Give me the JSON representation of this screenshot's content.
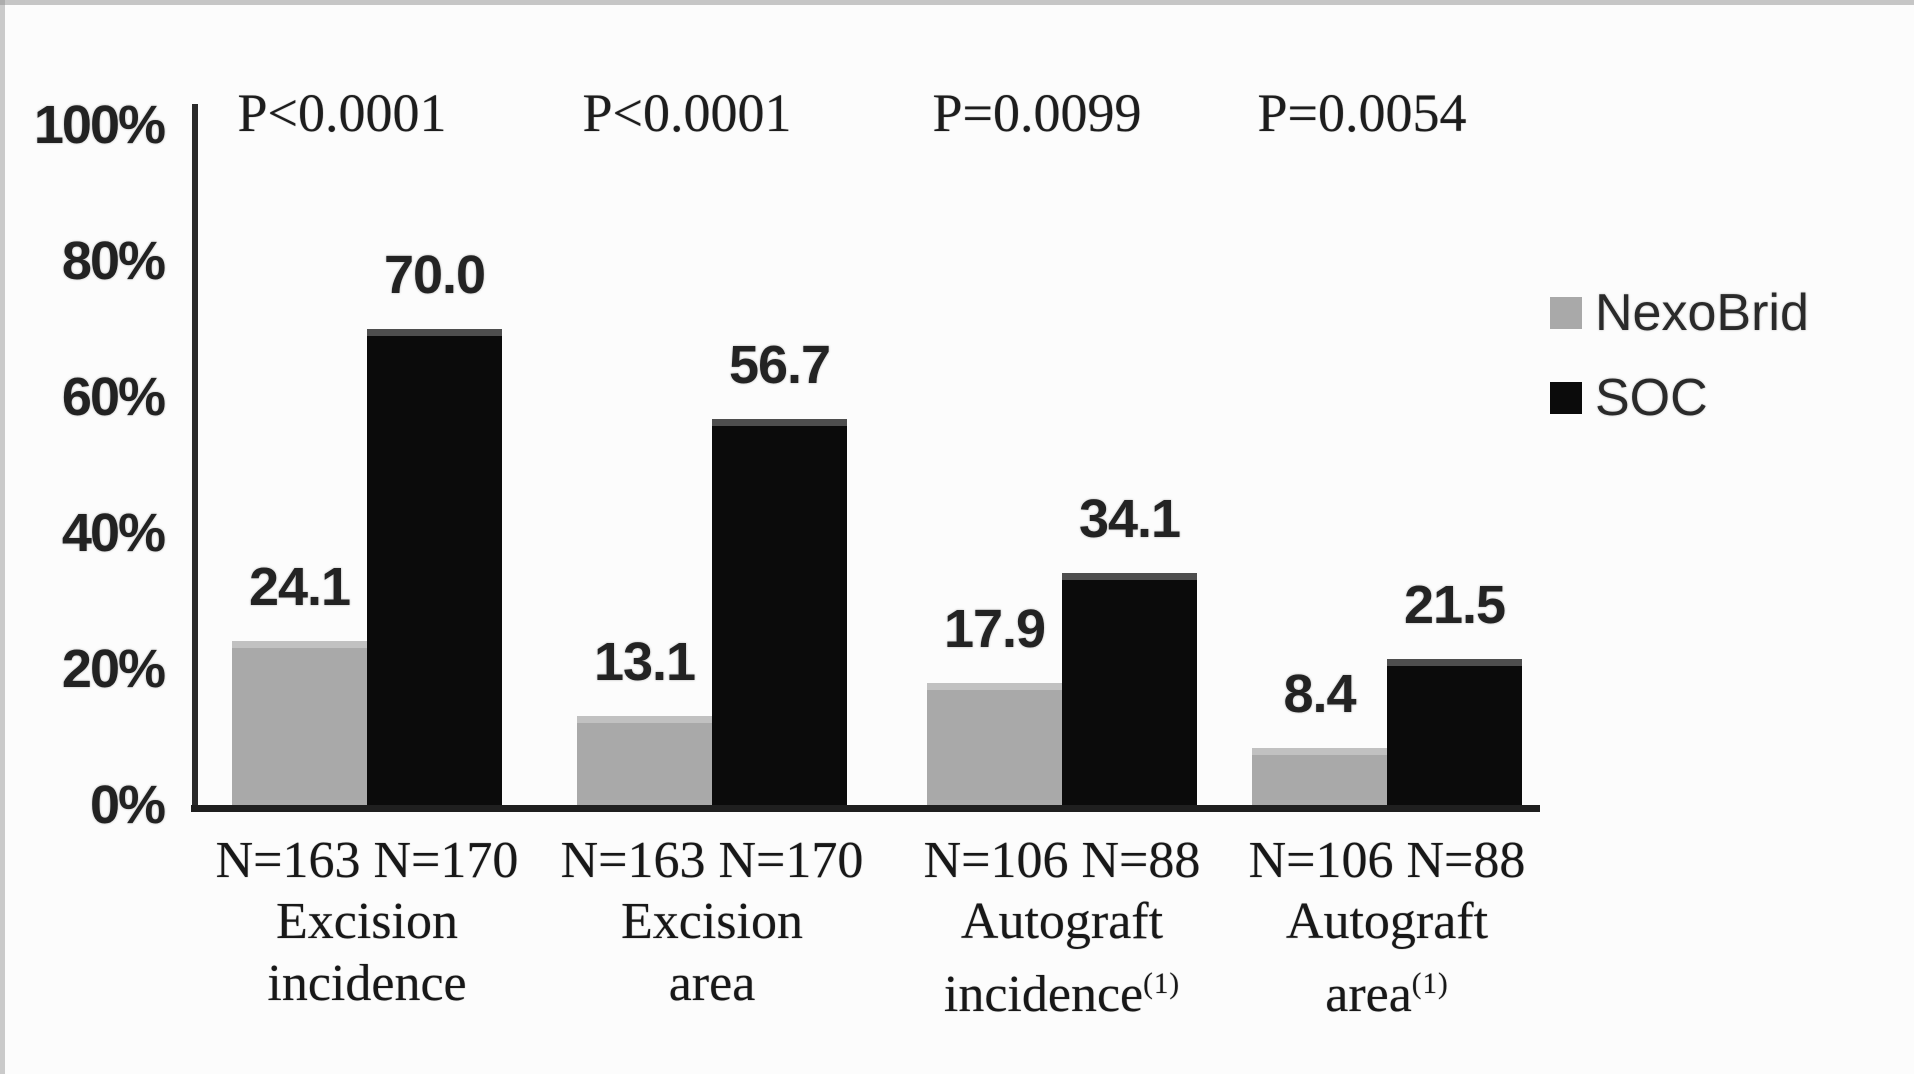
{
  "chart_data": {
    "type": "bar",
    "title": "",
    "xlabel": "",
    "ylabel": "",
    "ylim": [
      0,
      100
    ],
    "grid": false,
    "legend_position": "right",
    "y_ticks": [
      {
        "label": "0%",
        "value": 0
      },
      {
        "label": "20%",
        "value": 20
      },
      {
        "label": "40%",
        "value": 40
      },
      {
        "label": "60%",
        "value": 60
      },
      {
        "label": "80%",
        "value": 80
      },
      {
        "label": "100%",
        "value": 100
      }
    ],
    "groups": [
      {
        "p_value": "P<0.0001",
        "n_labels": [
          "N=163",
          "N=170"
        ],
        "category_lines": [
          "Excision",
          "incidence"
        ],
        "footnote": ""
      },
      {
        "p_value": "P<0.0001",
        "n_labels": [
          "N=163",
          "N=170"
        ],
        "category_lines": [
          "Excision",
          "area"
        ],
        "footnote": ""
      },
      {
        "p_value": "P=0.0099",
        "n_labels": [
          "N=106",
          "N=88"
        ],
        "category_lines": [
          "Autograft",
          "incidence"
        ],
        "footnote": "(1)"
      },
      {
        "p_value": "P=0.0054",
        "n_labels": [
          "N=106",
          "N=88"
        ],
        "category_lines": [
          "Autograft",
          "area"
        ],
        "footnote": "(1)"
      }
    ],
    "series": [
      {
        "name": "NexoBrid",
        "color": "#a9a9a9",
        "values": [
          24.1,
          13.1,
          17.9,
          8.4
        ]
      },
      {
        "name": "SOC",
        "color": "#0b0b0b",
        "values": [
          70.0,
          56.7,
          34.1,
          21.5
        ]
      }
    ]
  },
  "colors": {
    "axis": "#2a2a2a",
    "text": "#1c1c1c",
    "background": "#fcfcfc"
  }
}
